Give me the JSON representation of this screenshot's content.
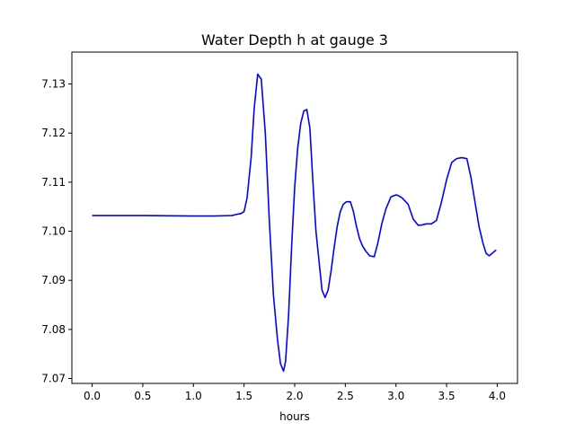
{
  "chart_data": {
    "type": "line",
    "title": "Water Depth h at gauge 3",
    "xlabel": "hours",
    "ylabel": "",
    "xlim": [
      -0.2,
      4.2
    ],
    "ylim": [
      7.069,
      7.1365
    ],
    "xticks": [
      0.0,
      0.5,
      1.0,
      1.5,
      2.0,
      2.5,
      3.0,
      3.5,
      4.0
    ],
    "xtick_labels": [
      "0.0",
      "0.5",
      "1.0",
      "1.5",
      "2.0",
      "2.5",
      "3.0",
      "3.5",
      "4.0"
    ],
    "yticks": [
      7.07,
      7.08,
      7.09,
      7.1,
      7.11,
      7.12,
      7.13
    ],
    "ytick_labels": [
      "7.07",
      "7.08",
      "7.09",
      "7.10",
      "7.11",
      "7.12",
      "7.13"
    ],
    "grid": false,
    "legend": "none",
    "series": [
      {
        "color": "#0000ff",
        "x": [
          0.0,
          0.5,
          1.0,
          1.2,
          1.38,
          1.44,
          1.47,
          1.5,
          1.53,
          1.57,
          1.6,
          1.635,
          1.67,
          1.71,
          1.75,
          1.79,
          1.83,
          1.86,
          1.89,
          1.91,
          1.94,
          1.97,
          2.0,
          2.03,
          2.06,
          2.09,
          2.12,
          2.15,
          2.18,
          2.21,
          2.24,
          2.27,
          2.3,
          2.33,
          2.36,
          2.385,
          2.42,
          2.45,
          2.48,
          2.51,
          2.55,
          2.58,
          2.61,
          2.64,
          2.67,
          2.7,
          2.74,
          2.785,
          2.82,
          2.86,
          2.9,
          2.95,
          3.0,
          3.02,
          3.06,
          3.12,
          3.17,
          3.22,
          3.26,
          3.3,
          3.35,
          3.4,
          3.45,
          3.5,
          3.55,
          3.6,
          3.65,
          3.7,
          3.74,
          3.78,
          3.82,
          3.86,
          3.89,
          3.92,
          3.95,
          3.99
        ],
        "y": [
          7.1032,
          7.1032,
          7.1031,
          7.1031,
          7.1032,
          7.1035,
          7.1036,
          7.104,
          7.1068,
          7.115,
          7.125,
          7.132,
          7.131,
          7.12,
          7.102,
          7.087,
          7.078,
          7.073,
          7.0715,
          7.0735,
          7.083,
          7.097,
          7.109,
          7.117,
          7.122,
          7.1245,
          7.1248,
          7.121,
          7.11,
          7.1,
          7.094,
          7.088,
          7.0865,
          7.088,
          7.092,
          7.096,
          7.101,
          7.104,
          7.1055,
          7.106,
          7.106,
          7.104,
          7.101,
          7.0985,
          7.097,
          7.096,
          7.095,
          7.0948,
          7.0975,
          7.1015,
          7.1045,
          7.107,
          7.1074,
          7.1073,
          7.1068,
          7.1055,
          7.1025,
          7.1012,
          7.1013,
          7.1015,
          7.1015,
          7.1022,
          7.106,
          7.1105,
          7.114,
          7.1148,
          7.115,
          7.1148,
          7.111,
          7.106,
          7.101,
          7.0975,
          7.0955,
          7.095,
          7.0955,
          7.0962
        ]
      }
    ]
  }
}
